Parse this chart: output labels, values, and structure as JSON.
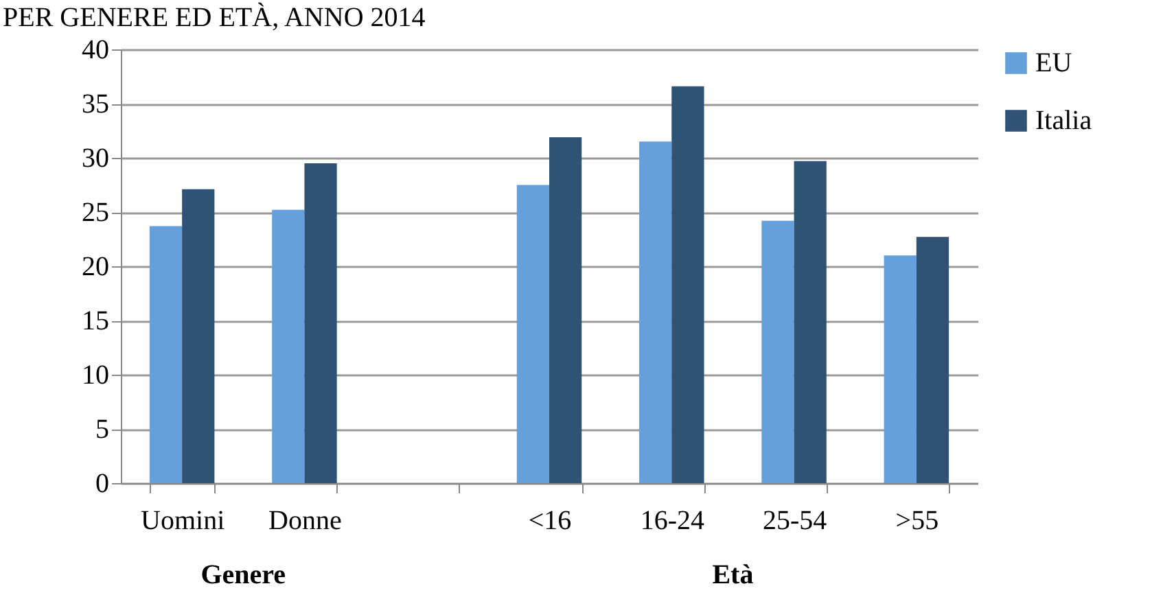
{
  "chart_data": {
    "type": "bar",
    "title": "PER GENERE ED ETÀ, ANNO 2014",
    "categories": [
      "Uomini",
      "Donne",
      null,
      "<16",
      "16-24",
      "25-54",
      ">55"
    ],
    "series": [
      {
        "name": "EU",
        "color": "#65a0dc",
        "values": [
          23.7,
          25.2,
          null,
          27.5,
          31.5,
          24.2,
          21.0
        ]
      },
      {
        "name": "Italia",
        "color": "#2f5275",
        "values": [
          27.1,
          29.5,
          null,
          31.9,
          36.6,
          29.7,
          22.7
        ]
      }
    ],
    "ylim": [
      0,
      40
    ],
    "yticks": [
      0,
      5,
      10,
      15,
      20,
      25,
      30,
      35,
      40
    ],
    "grid": "y",
    "legend": "right",
    "annotations": [
      "Genere",
      "Età"
    ]
  }
}
